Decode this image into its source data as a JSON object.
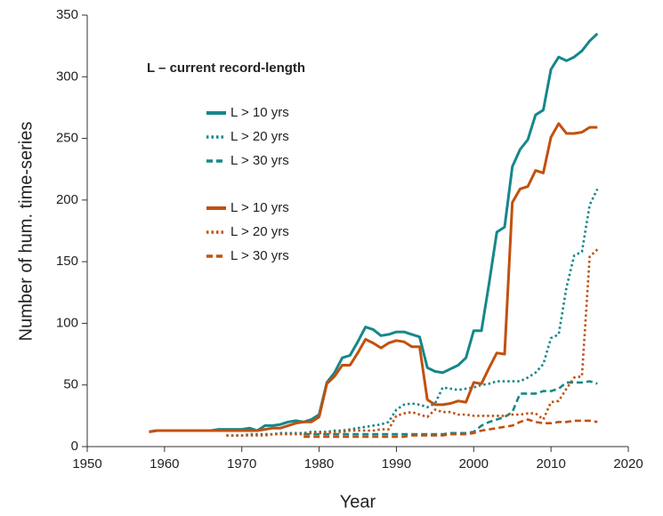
{
  "chart_data": {
    "type": "line",
    "xlabel": "Year",
    "ylabel": "Number of hum. time-series",
    "legend_title": "L – current record-length",
    "x": [
      1958,
      1959,
      1960,
      1961,
      1962,
      1963,
      1964,
      1965,
      1966,
      1967,
      1968,
      1969,
      1970,
      1971,
      1972,
      1973,
      1974,
      1975,
      1976,
      1977,
      1978,
      1979,
      1980,
      1981,
      1982,
      1983,
      1984,
      1985,
      1986,
      1987,
      1988,
      1989,
      1990,
      1991,
      1992,
      1993,
      1994,
      1995,
      1996,
      1997,
      1998,
      1999,
      2000,
      2001,
      2002,
      2003,
      2004,
      2005,
      2006,
      2007,
      2008,
      2009,
      2010,
      2011,
      2012,
      2013,
      2014,
      2015,
      2016
    ],
    "series": [
      {
        "name": "L > 10 yrs",
        "color": "#16878a",
        "style": "solid",
        "values": [
          12,
          13,
          13,
          13,
          13,
          13,
          13,
          13,
          13,
          14,
          14,
          14,
          14,
          15,
          13,
          17,
          17,
          18,
          20,
          21,
          20,
          22,
          26,
          52,
          60,
          72,
          74,
          85,
          97,
          95,
          90,
          91,
          93,
          93,
          91,
          89,
          64,
          61,
          60,
          63,
          66,
          72,
          94,
          94,
          133,
          174,
          178,
          227,
          241,
          249,
          269,
          273,
          306,
          316,
          313,
          316,
          321,
          329,
          335
        ]
      },
      {
        "name": "L > 20 yrs",
        "color": "#16878a",
        "style": "dotted",
        "values": [
          null,
          null,
          null,
          null,
          null,
          null,
          null,
          null,
          null,
          null,
          9,
          9,
          9,
          10,
          10,
          10,
          10,
          11,
          11,
          11,
          11,
          12,
          12,
          12,
          13,
          13,
          14,
          15,
          16,
          17,
          18,
          20,
          30,
          34,
          35,
          34,
          32,
          35,
          48,
          47,
          46,
          47,
          48,
          50,
          51,
          53,
          53,
          53,
          53,
          56,
          60,
          67,
          88,
          91,
          129,
          155,
          158,
          196,
          209
        ]
      },
      {
        "name": "L > 30 yrs",
        "color": "#16878a",
        "style": "dashed",
        "values": [
          null,
          null,
          null,
          null,
          null,
          null,
          null,
          null,
          null,
          null,
          null,
          null,
          null,
          null,
          null,
          null,
          null,
          null,
          null,
          null,
          10,
          10,
          10,
          10,
          10,
          10,
          10,
          10,
          10,
          10,
          10,
          10,
          10,
          10,
          10,
          10,
          10,
          10,
          10,
          11,
          11,
          11,
          12,
          17,
          20,
          22,
          24,
          28,
          43,
          43,
          43,
          45,
          45,
          47,
          52,
          52,
          52,
          53,
          51
        ]
      },
      {
        "name": "L > 10 yrs",
        "color": "#c1510f",
        "style": "solid",
        "values": [
          12,
          13,
          13,
          13,
          13,
          13,
          13,
          13,
          13,
          13,
          13,
          13,
          13,
          13,
          13,
          14,
          15,
          15,
          17,
          19,
          20,
          20,
          24,
          51,
          57,
          66,
          66,
          76,
          87,
          84,
          80,
          84,
          86,
          85,
          81,
          81,
          38,
          34,
          34,
          35,
          37,
          36,
          52,
          51,
          64,
          76,
          75,
          198,
          209,
          211,
          224,
          222,
          251,
          262,
          254,
          254,
          255,
          259,
          259
        ]
      },
      {
        "name": "L > 20 yrs",
        "color": "#c1510f",
        "style": "dotted",
        "values": [
          null,
          null,
          null,
          null,
          null,
          null,
          null,
          null,
          null,
          null,
          9,
          9,
          9,
          9,
          9,
          9,
          10,
          10,
          10,
          10,
          10,
          11,
          11,
          11,
          12,
          12,
          13,
          13,
          13,
          13,
          14,
          14,
          25,
          27,
          28,
          26,
          24,
          30,
          28,
          28,
          26,
          26,
          25,
          25,
          25,
          25,
          25,
          26,
          26,
          27,
          27,
          22,
          36,
          37,
          47,
          56,
          57,
          154,
          160
        ]
      },
      {
        "name": "L > 30 yrs",
        "color": "#c1510f",
        "style": "dashed",
        "values": [
          null,
          null,
          null,
          null,
          null,
          null,
          null,
          null,
          null,
          null,
          null,
          null,
          null,
          null,
          null,
          null,
          null,
          null,
          null,
          null,
          8,
          8,
          8,
          8,
          8,
          8,
          8,
          8,
          8,
          8,
          8,
          8,
          8,
          8,
          9,
          9,
          9,
          9,
          9,
          10,
          10,
          10,
          11,
          13,
          14,
          15,
          16,
          17,
          20,
          22,
          20,
          19,
          19,
          20,
          20,
          21,
          21,
          21,
          20
        ]
      }
    ],
    "xlim": [
      1950,
      2020
    ],
    "xticks": [
      1950,
      1960,
      1970,
      1980,
      1990,
      2000,
      2010,
      2020
    ],
    "ylim": [
      0,
      350
    ],
    "yticks": [
      0,
      50,
      100,
      150,
      200,
      250,
      300,
      350
    ]
  }
}
